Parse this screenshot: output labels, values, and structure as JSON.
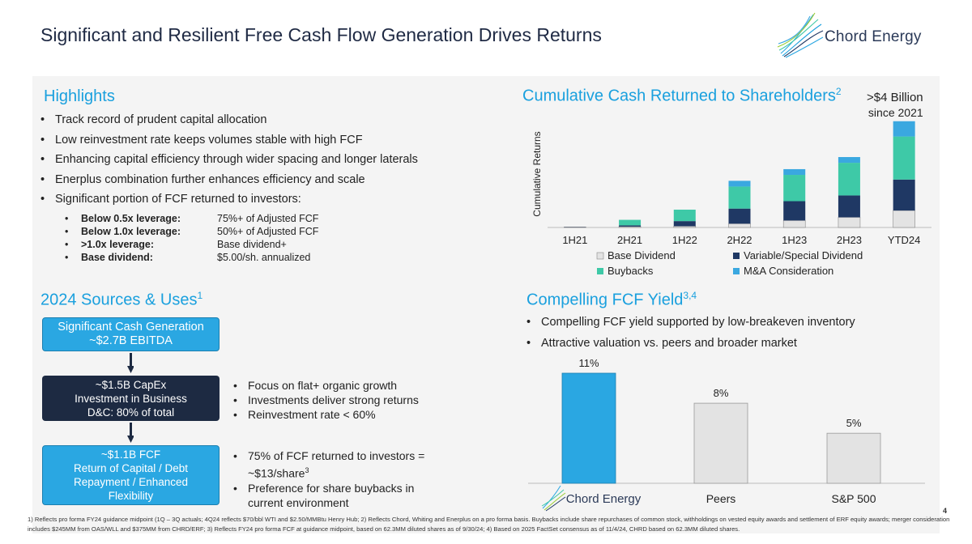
{
  "header": {
    "title": "Significant and Resilient Free Cash Flow Generation Drives Returns",
    "logo_text": "Chord Energy"
  },
  "highlights": {
    "title": "Highlights",
    "bullets": [
      "Track record of prudent capital allocation",
      "Low reinvestment rate keeps volumes stable with high FCF",
      "Enhancing capital efficiency through wider spacing and longer laterals",
      "Enerplus combination further enhances efficiency and scale",
      "Significant portion of FCF returned to investors:"
    ],
    "sub_bullets": [
      {
        "key": "Below 0.5x leverage:",
        "value": "75%+ of Adjusted FCF"
      },
      {
        "key": "Below 1.0x leverage:",
        "value": "50%+ of Adjusted FCF"
      },
      {
        "key": ">1.0x leverage:",
        "value": "Base dividend+"
      },
      {
        "key": "Base dividend:",
        "value": "$5.00/sh. annualized"
      }
    ]
  },
  "sources_uses": {
    "title": "2024 Sources & Uses",
    "title_sup": "1",
    "box1": {
      "line1": "Significant Cash Generation",
      "line2": "~$2.7B EBITDA"
    },
    "box2": {
      "line1": "~$1.5B CapEx",
      "line2": "Investment in Business",
      "line3": "D&C: 80% of total"
    },
    "box3": {
      "line1": "~$1.1B FCF",
      "line2": "Return of Capital / Debt",
      "line3": "Repayment / Enhanced",
      "line4": "Flexibility"
    },
    "list1": [
      "Focus on flat+ organic growth",
      "Investments deliver strong returns",
      "Reinvestment rate < 60%"
    ],
    "list2": {
      "item1_line1": "75% of FCF returned to investors =",
      "item1_line2": "~$13/share",
      "item1_sup": "3",
      "item2_line1": "Preference for share buybacks in",
      "item2_line2": "current environment"
    }
  },
  "cumulative": {
    "title": "Cumulative Cash Returned to Shareholders",
    "title_sup": "2",
    "note_line1": ">$4 Billion",
    "note_line2": "since 2021",
    "colors": {
      "base": "#e3e3e3",
      "variable": "#1f3864",
      "buybacks": "#3ec9a7",
      "ma": "#3aa8e0"
    }
  },
  "fcf_yield": {
    "title": "Compelling FCF Yield",
    "title_sup": "3,4",
    "bullets": [
      "Compelling FCF yield supported by low-breakeven inventory",
      "Attractive valuation vs. peers and broader market"
    ]
  },
  "chart_data": [
    {
      "type": "bar",
      "stacked": true,
      "ylabel": "Cumulative Returns",
      "categories": [
        "1H21",
        "2H21",
        "1H22",
        "2H22",
        "1H23",
        "2H23",
        "YTD24"
      ],
      "series": [
        {
          "name": "Base Dividend",
          "color": "#e3e3e3",
          "values": [
            0.02,
            0.04,
            0.06,
            0.18,
            0.33,
            0.48,
            0.8
          ]
        },
        {
          "name": "Variable/Special Dividend",
          "color": "#1f3864",
          "values": [
            0.01,
            0.06,
            0.24,
            0.71,
            0.91,
            1.03,
            1.46
          ]
        },
        {
          "name": "Buybacks",
          "color": "#3ec9a7",
          "values": [
            0.0,
            0.26,
            0.54,
            1.04,
            1.24,
            1.54,
            2.03
          ]
        },
        {
          "name": "M&A Consideration",
          "color": "#3aa8e0",
          "values": [
            0.0,
            0.0,
            0.0,
            0.27,
            0.27,
            0.27,
            0.72
          ]
        }
      ],
      "ylim": [
        0,
        5.0
      ],
      "grid": false,
      "legend": "bottom"
    },
    {
      "type": "bar",
      "categories": [
        "Chord Energy",
        "Peers",
        "S&P 500"
      ],
      "values": [
        11,
        8,
        5
      ],
      "data_labels": [
        "11%",
        "8%",
        "5%"
      ],
      "bar_colors": [
        "#2aa7e2",
        "#e3e3e3",
        "#e3e3e3"
      ],
      "ylim": [
        0,
        12
      ],
      "grid": false
    }
  ],
  "footnote": "1) Reflects pro forma FY24 guidance midpoint (1Q – 3Q actuals; 4Q24 reflects $70/bbl WTI and $2.50/MMBtu Henry Hub; 2) Reflects Chord, Whiting and Enerplus on a pro forma basis. Buybacks include share repurchases of common stock, withholdings on vested equity awards and settlement of ERF equity awards; merger consideration includes $245MM from OAS/WLL and $375MM from CHRD/ERF; 3) Reflects FY24 pro forma FCF at guidance midpoint, based on 62.3MM diluted shares as of 9/30/24; 4) Based on 2025 FactSet consensus as of 11/4/24, CHRD based on 62.3MM diluted shares.",
  "page_number": "4"
}
